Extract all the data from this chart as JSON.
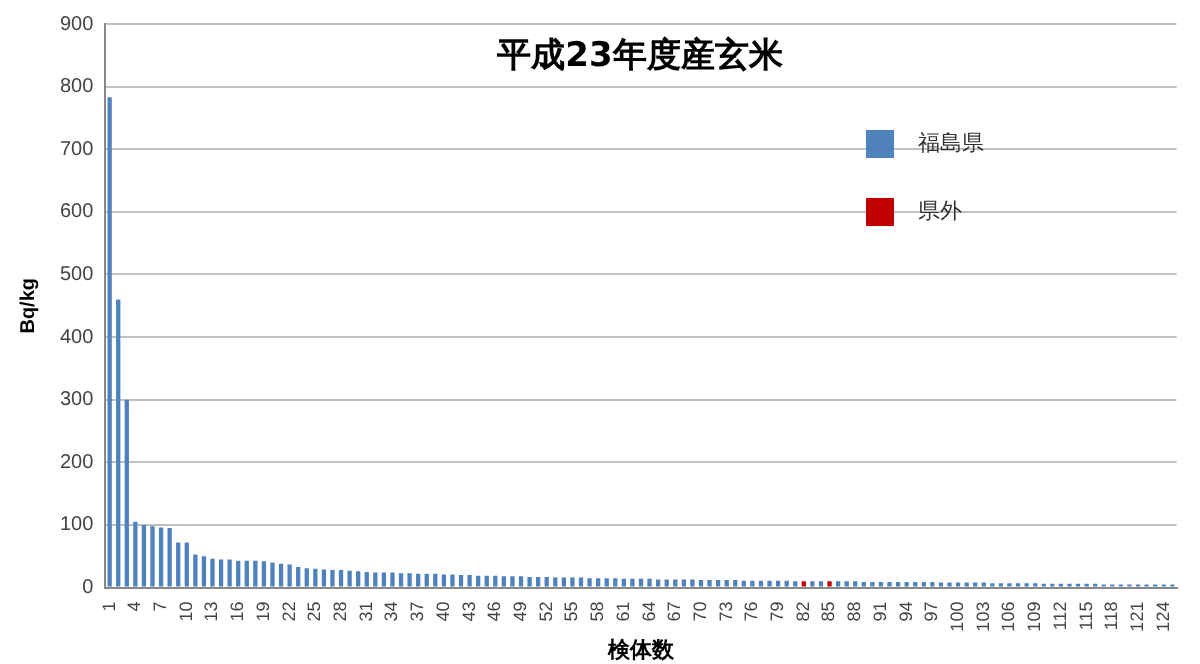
{
  "chart_data": {
    "type": "bar",
    "title": "平成23年度産玄米",
    "xlabel": "検体数",
    "ylabel": "Bq/kg",
    "grid": "y",
    "legend": "top right",
    "ylim": [
      0,
      900
    ],
    "yticks": [
      0,
      100,
      200,
      300,
      400,
      500,
      600,
      700,
      800,
      900
    ],
    "categories": [
      "1",
      null,
      null,
      "4",
      null,
      null,
      "7",
      null,
      null,
      "10",
      null,
      null,
      "13",
      null,
      null,
      "16",
      null,
      null,
      "19",
      null,
      null,
      "22",
      null,
      null,
      "25",
      null,
      null,
      "28",
      null,
      null,
      "31",
      null,
      null,
      "34",
      null,
      null,
      "37",
      null,
      null,
      "40",
      null,
      null,
      "43",
      null,
      null,
      "46",
      null,
      null,
      "49",
      null,
      null,
      "52",
      null,
      null,
      "55",
      null,
      null,
      "58",
      null,
      null,
      "61",
      null,
      null,
      "64",
      null,
      null,
      "67",
      null,
      null,
      "70",
      null,
      null,
      "73",
      null,
      null,
      "76",
      null,
      null,
      "79",
      null,
      null,
      "82",
      null,
      null,
      "85",
      null,
      null,
      "88",
      null,
      null,
      "91",
      null,
      null,
      "94",
      null,
      null,
      "97",
      null,
      null,
      "100",
      null,
      null,
      "103",
      null,
      null,
      "106",
      null,
      null,
      "109",
      null,
      null,
      "112",
      null,
      null,
      "115",
      null,
      null,
      "118",
      null,
      null,
      "121",
      null,
      null,
      "124",
      null
    ],
    "series": [
      {
        "name": "福島県",
        "color": "#4f81bd",
        "values": [
          783,
          460,
          300,
          105,
          100,
          98,
          96,
          95,
          72,
          72,
          53,
          50,
          46,
          45,
          45,
          43,
          43,
          43,
          42,
          40,
          38,
          37,
          33,
          31,
          30,
          29,
          28,
          28,
          27,
          26,
          25,
          24,
          24,
          24,
          23,
          23,
          22,
          22,
          22,
          21,
          21,
          20,
          20,
          19,
          19,
          19,
          18,
          18,
          18,
          17,
          17,
          17,
          16,
          16,
          16,
          16,
          15,
          15,
          15,
          15,
          14,
          14,
          14,
          14,
          13,
          13,
          13,
          13,
          13,
          12,
          12,
          12,
          12,
          12,
          11,
          11,
          11,
          11,
          11,
          11,
          10,
          null,
          10,
          10,
          null,
          10,
          10,
          10,
          9,
          9,
          9,
          9,
          9,
          9,
          9,
          9,
          9,
          8,
          8,
          8,
          8,
          8,
          8,
          7,
          7,
          7,
          7,
          7,
          7,
          6,
          6,
          6,
          6,
          6,
          6,
          6,
          5,
          5,
          5,
          5,
          5,
          5,
          5,
          5,
          5
        ]
      },
      {
        "name": "県外",
        "color": "#c00000",
        "values": [
          null,
          null,
          null,
          null,
          null,
          null,
          null,
          null,
          null,
          null,
          null,
          null,
          null,
          null,
          null,
          null,
          null,
          null,
          null,
          null,
          null,
          null,
          null,
          null,
          null,
          null,
          null,
          null,
          null,
          null,
          null,
          null,
          null,
          null,
          null,
          null,
          null,
          null,
          null,
          null,
          null,
          null,
          null,
          null,
          null,
          null,
          null,
          null,
          null,
          null,
          null,
          null,
          null,
          null,
          null,
          null,
          null,
          null,
          null,
          null,
          null,
          null,
          null,
          null,
          null,
          null,
          null,
          null,
          null,
          null,
          null,
          null,
          null,
          null,
          null,
          null,
          null,
          null,
          null,
          null,
          null,
          10,
          null,
          null,
          10,
          null,
          null,
          null,
          null,
          null,
          null,
          null,
          null,
          null,
          null,
          null,
          null,
          null,
          null,
          null,
          null,
          null,
          null,
          null,
          null,
          null,
          null,
          null,
          null,
          null,
          null,
          null,
          null,
          null,
          null,
          null,
          null,
          null,
          null,
          null,
          null,
          null,
          null,
          null,
          null
        ]
      }
    ]
  }
}
